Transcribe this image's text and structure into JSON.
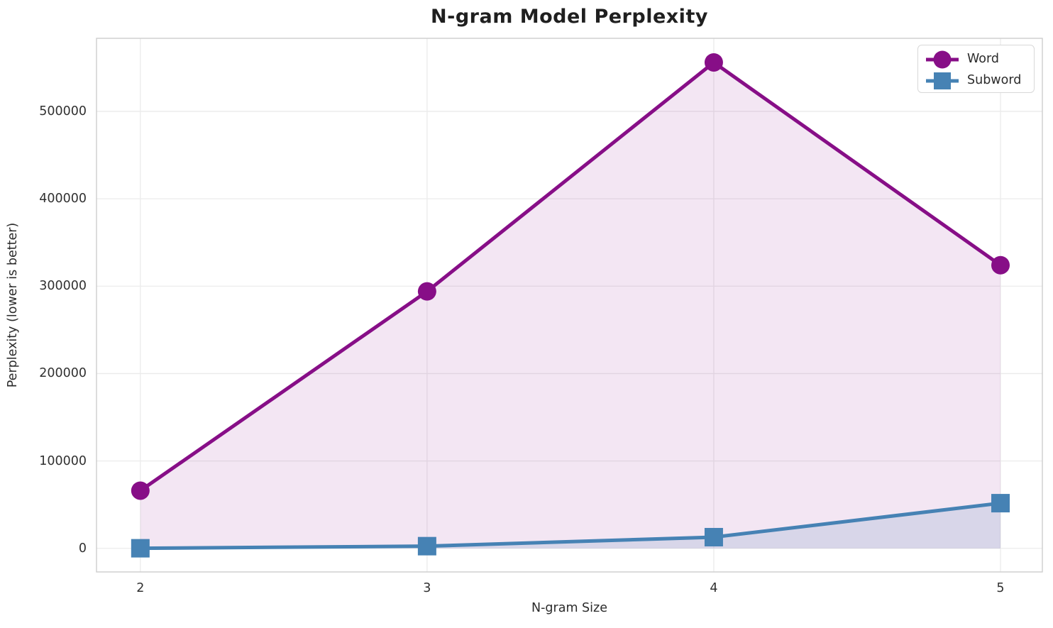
{
  "chart_data": {
    "type": "line",
    "title": "N-gram Model Perplexity",
    "xlabel": "N-gram Size",
    "ylabel": "Perplexity (lower is better)",
    "x": [
      2,
      3,
      4,
      5
    ],
    "series": [
      {
        "name": "Word",
        "values": [
          66000,
          294000,
          556000,
          324000
        ],
        "color": "#870e87",
        "marker": "circle",
        "fill_to_zero": true,
        "fill_opacity": 0.1
      },
      {
        "name": "Subword",
        "values": [
          100,
          2500,
          12800,
          51700
        ],
        "color": "#4682b4",
        "marker": "square",
        "fill_to_zero": true,
        "fill_opacity": 0.15
      }
    ],
    "xticks": [
      2,
      3,
      4,
      5
    ],
    "yticks": [
      0,
      100000,
      200000,
      300000,
      400000,
      500000
    ],
    "xlim": [
      1.847,
      5.146
    ],
    "ylim": [
      -27000,
      583600
    ],
    "grid": true,
    "grid_color": "#ebebeb",
    "spine_color": "#cdcdcd",
    "background_color": "#ffffff",
    "legend_position": "upper right",
    "line_width": 5,
    "marker_size": 13
  }
}
